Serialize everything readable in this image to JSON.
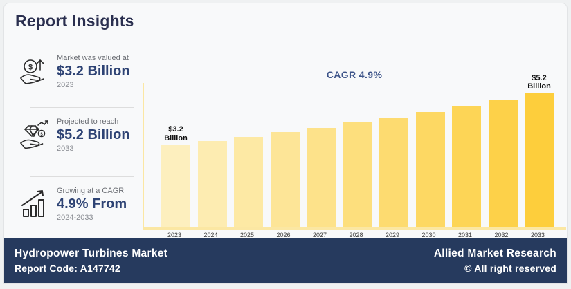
{
  "title": "Report Insights",
  "stats": [
    {
      "icon": "coin-hand-growth-icon",
      "label": "Market was valued at",
      "value": "$3.2 Billion",
      "period": "2023"
    },
    {
      "icon": "diamond-hand-icon",
      "label": "Projected to reach",
      "value": "$5.2 Billion",
      "period": "2033"
    },
    {
      "icon": "bar-chart-growth-icon",
      "label": "Growing at a CAGR",
      "value": "4.9% From",
      "period": "2024-2033"
    }
  ],
  "chart_data": {
    "type": "bar",
    "title": "CAGR 4.9%",
    "categories": [
      "2023",
      "2024",
      "2025",
      "2026",
      "2027",
      "2028",
      "2029",
      "2030",
      "2031",
      "2032",
      "2033"
    ],
    "values": [
      3.2,
      3.36,
      3.52,
      3.69,
      3.87,
      4.06,
      4.26,
      4.47,
      4.69,
      4.92,
      5.2
    ],
    "bar_colors": [
      "#FDEFBE",
      "#FDECB1",
      "#FDE9A4",
      "#FDE597",
      "#FDE28A",
      "#FDDF7D",
      "#FDDB70",
      "#FDD863",
      "#FDD556",
      "#FDD149",
      "#FDCE3C"
    ],
    "value_labels": {
      "first": "$3.2 Billion",
      "last": "$5.2 Billion"
    },
    "xlabel": "",
    "ylabel": "",
    "ylim": [
      0,
      5.6
    ],
    "grid": false,
    "legend": "none",
    "axis_color": "#FBE7A3"
  },
  "footer": {
    "market_name": "Hydropower Turbines Market",
    "report_code": "Report Code: A147742",
    "brand": "Allied Market Research",
    "copyright": "© All right reserved",
    "background": "#263A5E"
  }
}
